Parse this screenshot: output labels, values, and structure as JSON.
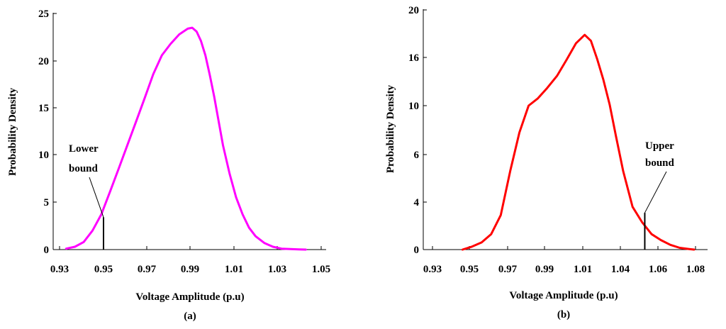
{
  "chart_data": [
    {
      "type": "line",
      "panel_label": "(a)",
      "xlabel": "Voltage Amplitude (p.u)",
      "ylabel": "Probability Density",
      "xticks": [
        "0.93",
        "0.95",
        "0.97",
        "0.99",
        "1.01",
        "1.03",
        "1.05"
      ],
      "yticks": [
        "0",
        "5",
        "10",
        "15",
        "20",
        "25"
      ],
      "xlim": [
        0.93,
        1.05
      ],
      "ylim": [
        0,
        25
      ],
      "grid": false,
      "series": [
        {
          "name": "Probability Density",
          "color": "#ff00ff",
          "x": [
            0.933,
            0.937,
            0.941,
            0.945,
            0.949,
            0.953,
            0.957,
            0.961,
            0.965,
            0.969,
            0.973,
            0.977,
            0.981,
            0.985,
            0.989,
            0.991,
            0.993,
            0.995,
            0.997,
            0.999,
            1.001,
            1.003,
            1.005,
            1.008,
            1.011,
            1.014,
            1.017,
            1.02,
            1.024,
            1.028,
            1.032,
            1.036,
            1.04,
            1.043
          ],
          "y": [
            0.1,
            0.3,
            0.8,
            2.0,
            3.7,
            6.1,
            8.5,
            11.0,
            13.5,
            16.0,
            18.6,
            20.6,
            21.8,
            22.8,
            23.4,
            23.5,
            23.1,
            22.1,
            20.6,
            18.5,
            16.2,
            13.6,
            11.0,
            8.0,
            5.5,
            3.7,
            2.3,
            1.4,
            0.7,
            0.3,
            0.1,
            0.05,
            0.02,
            0.0
          ]
        }
      ],
      "annotations": [
        {
          "text_line1": "Lower",
          "text_line2": "bound",
          "x": 0.95,
          "y": 3.4
        }
      ]
    },
    {
      "type": "line",
      "panel_label": "(b)",
      "xlabel": "Voltage Amplitude (p.u)",
      "ylabel": "Probability Density",
      "xticks": [
        "0.93",
        "0.95",
        "0.97",
        "0.99",
        "1.01",
        "1.04",
        "1.06",
        "1.08"
      ],
      "yticks": [
        "0",
        "4",
        "6",
        "10",
        "16",
        "20"
      ],
      "xlim": [
        0.93,
        1.08
      ],
      "ylim": [
        0,
        20
      ],
      "grid": false,
      "series": [
        {
          "name": "Probability Density",
          "color": "#ff0000",
          "x": [
            0.9463,
            0.9514,
            0.9564,
            0.9614,
            0.9664,
            0.9714,
            0.9764,
            0.9814,
            0.9864,
            0.9914,
            0.9965,
            1.0015,
            1.0065,
            1.0115,
            1.0165,
            1.0215,
            1.0265,
            1.0315,
            1.0365,
            1.0415,
            1.0465,
            1.0516,
            1.0566,
            1.0616,
            1.0666,
            1.0716,
            1.0766,
            1.0793
          ],
          "y": [
            0.0,
            0.25,
            0.6,
            1.3,
            2.9,
            5.3,
            7.8,
            10.0,
            10.9,
            12.2,
            13.7,
            15.7,
            17.2,
            17.9,
            17.4,
            15.8,
            13.2,
            10.1,
            7.5,
            5.3,
            3.6,
            2.3,
            1.3,
            0.8,
            0.4,
            0.15,
            0.05,
            0.0
          ]
        }
      ],
      "annotations": [
        {
          "text_line1": "Upper",
          "text_line2": "bound",
          "x": 1.053,
          "y": 3.1
        }
      ]
    }
  ]
}
